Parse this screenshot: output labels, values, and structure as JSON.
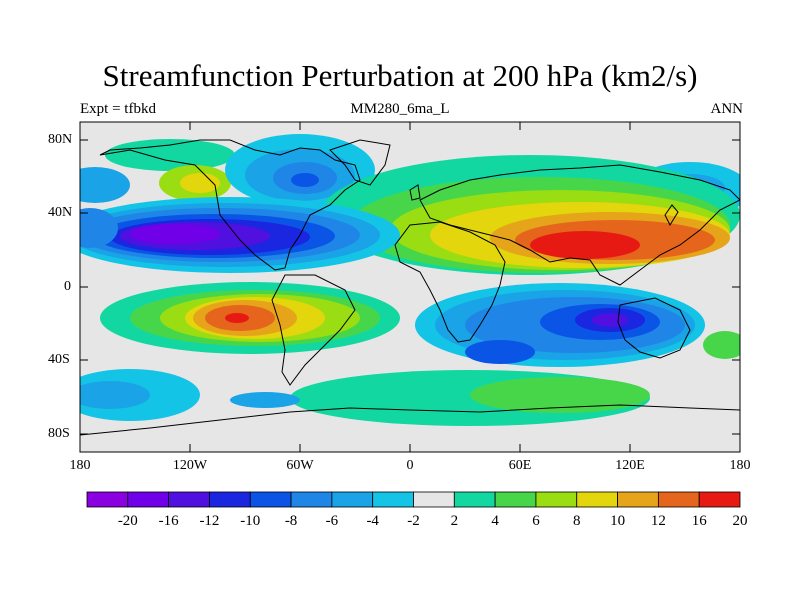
{
  "title": "Streamfunction Perturbation at 200 hPa (km2/s)",
  "subtitle_left": "Expt = tfbkd",
  "subtitle_center": "MM280_6ma_L",
  "subtitle_right": "ANN",
  "lat_labels": [
    "80N",
    "40N",
    "0",
    "40S",
    "80S"
  ],
  "lon_labels": [
    "180",
    "120W",
    "60W",
    "0",
    "60E",
    "120E",
    "180"
  ],
  "colorbar": {
    "colors": [
      "#8a00e0",
      "#7000e8",
      "#4f10e0",
      "#1a26e0",
      "#0a55e6",
      "#1f86e8",
      "#1aa3e6",
      "#13c4e6",
      "#e6e6e6",
      "#13d7a0",
      "#47d64a",
      "#99dd12",
      "#e3d60c",
      "#e6a41a",
      "#e6651c",
      "#e61a12"
    ],
    "labels": [
      "-20",
      "-16",
      "-12",
      "-10",
      "-8",
      "-6",
      "-4",
      "-2",
      "2",
      "4",
      "6",
      "8",
      "10",
      "12",
      "16",
      "20"
    ]
  },
  "colors": {
    "background_land_ocean": "#e6e6e6",
    "coastline": "#000000"
  }
}
